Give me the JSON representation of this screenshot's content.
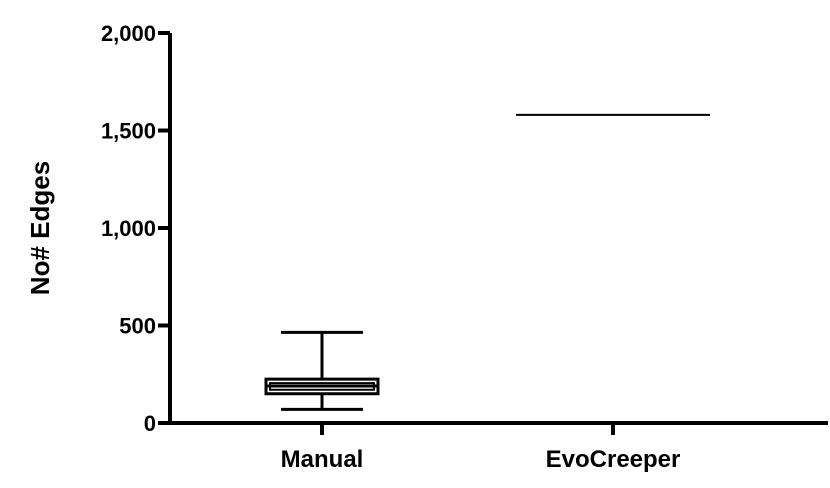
{
  "chart_data": {
    "type": "box",
    "title": "",
    "xlabel": "",
    "ylabel": "No# Edges",
    "ylim": [
      0,
      2000
    ],
    "yticks": [
      0,
      500,
      1000,
      1500,
      2000
    ],
    "ytick_labels": [
      "0",
      "500",
      "1,000",
      "1,500",
      "2,000"
    ],
    "categories": [
      "Manual",
      "EvoCreeper"
    ],
    "series": [
      {
        "category": "Manual",
        "kind": "box",
        "min": 70,
        "q1": 150,
        "median": 190,
        "q3": 225,
        "max": 465
      },
      {
        "category": "EvoCreeper",
        "kind": "line",
        "value": 1580
      }
    ],
    "grid": false,
    "legend": "none",
    "colors": {
      "axis": "#000000",
      "marks": "#000000"
    }
  }
}
